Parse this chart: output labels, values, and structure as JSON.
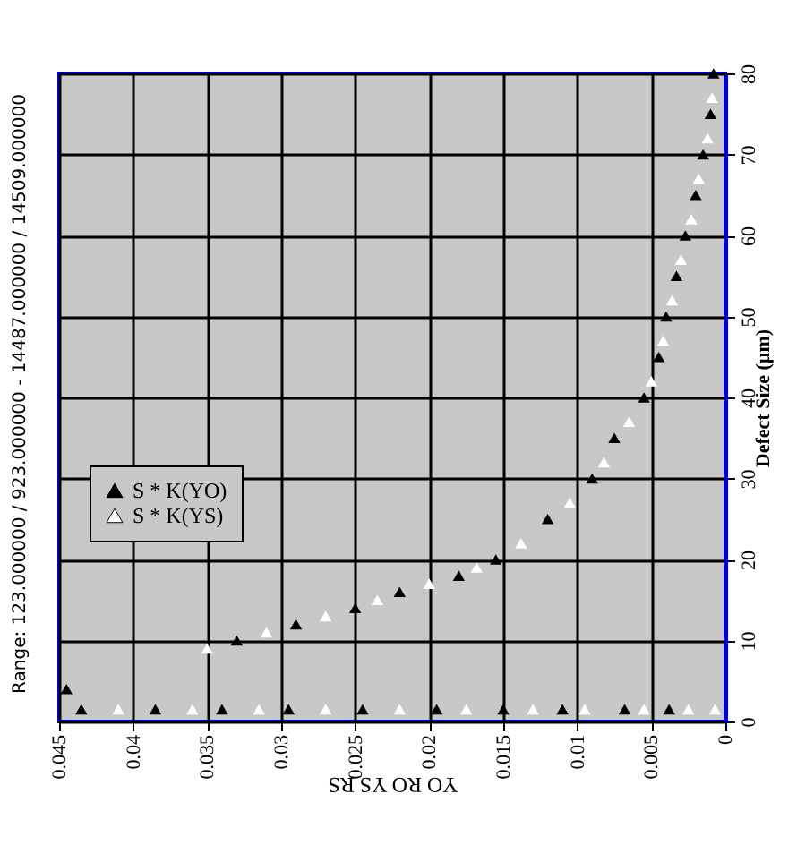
{
  "chart_data": {
    "type": "scatter",
    "title": "Range: 123.000000 / 923.000000 - 14487.000000 / 14509.000000",
    "xlabel": "YO RO YS RS",
    "ylabel": "Defect Size (µm)",
    "xlim": [
      0.045,
      0
    ],
    "xticks": [
      0.045,
      0.04,
      0.035,
      0.03,
      0.025,
      0.02,
      0.015,
      0.01,
      0.005,
      0
    ],
    "ylim": [
      0,
      80
    ],
    "yticks": [
      0,
      10,
      20,
      30,
      40,
      50,
      60,
      70,
      80
    ],
    "grid": true,
    "legend": "bottom left",
    "marker": "triangle",
    "series": [
      {
        "name": "S * K(YO)",
        "color": "#000000",
        "x": [
          0.0435,
          0.0385,
          0.034,
          0.0295,
          0.0245,
          0.0195,
          0.015,
          0.011,
          0.0068,
          0.0038,
          0.0445,
          0.033,
          0.029,
          0.025,
          0.022,
          0.018,
          0.0155,
          0.012,
          0.009,
          0.0075,
          0.0055,
          0.0045,
          0.004,
          0.0033,
          0.0027,
          0.002,
          0.0015,
          0.001,
          0.0008
        ],
        "values": [
          1.5,
          1.5,
          1.5,
          1.5,
          1.5,
          1.5,
          1.5,
          1.5,
          1.5,
          1.5,
          4,
          10,
          12,
          14,
          16,
          18,
          20,
          25,
          30,
          35,
          40,
          45,
          50,
          55,
          60,
          65,
          70,
          75,
          80
        ]
      },
      {
        "name": "S * K(YS)",
        "color": "#ffffff",
        "x": [
          0.041,
          0.036,
          0.0315,
          0.027,
          0.022,
          0.0175,
          0.013,
          0.0095,
          0.0055,
          0.0025,
          0.0007,
          0.035,
          0.031,
          0.027,
          0.0235,
          0.02,
          0.0168,
          0.0138,
          0.0105,
          0.0082,
          0.0065,
          0.005,
          0.0042,
          0.0036,
          0.003,
          0.0023,
          0.0018,
          0.0012,
          0.0009
        ],
        "values": [
          1.5,
          1.5,
          1.5,
          1.5,
          1.5,
          1.5,
          1.5,
          1.5,
          1.5,
          1.5,
          1.5,
          9,
          11,
          13,
          15,
          17,
          19,
          22,
          27,
          32,
          37,
          42,
          47,
          52,
          57,
          62,
          67,
          72,
          77
        ]
      }
    ]
  }
}
